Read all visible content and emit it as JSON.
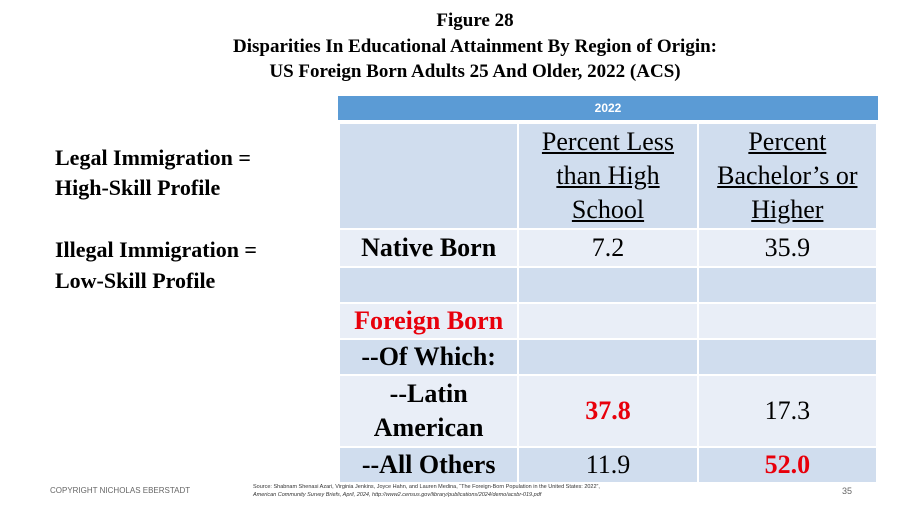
{
  "header": {
    "figure": "Figure 28",
    "title_lines": [
      "Disparities In Educational Attainment By Region of Origin:",
      "US Foreign Born Adults 25 And Older, 2022 (ACS)"
    ]
  },
  "side_text": [
    "Legal Immigration =",
    "High-Skill Profile",
    "Illegal Immigration =",
    "Low-Skill Profile"
  ],
  "table": {
    "banner": "2022",
    "columns": [
      "Percent Less than High School",
      "Percent Bachelor’s or Higher"
    ],
    "rows": [
      [
        "Native Born",
        "7.2",
        "35.9"
      ],
      [
        "Foreign Born"
      ],
      [
        "--Of Which:"
      ],
      [
        "--Latin American",
        "37.8",
        "17.3"
      ],
      [
        "--All Others",
        "11.9",
        "52.0"
      ]
    ]
  },
  "footer": {
    "copyright": "COPYRIGHT NICHOLAS EBERSTADT",
    "source_lines": [
      "Source: Shabnam Shenasi Azari, Virginia Jenkins, Joyce Hahn, and Lauren Medina, “The Foreign-Born Population in the United States: 2022”,",
      "American Community Survey Briefs, April, 2024, http://www2.census.gov/library/publications/2024/demo/acsbr-019.pdf"
    ],
    "page": "35"
  }
}
